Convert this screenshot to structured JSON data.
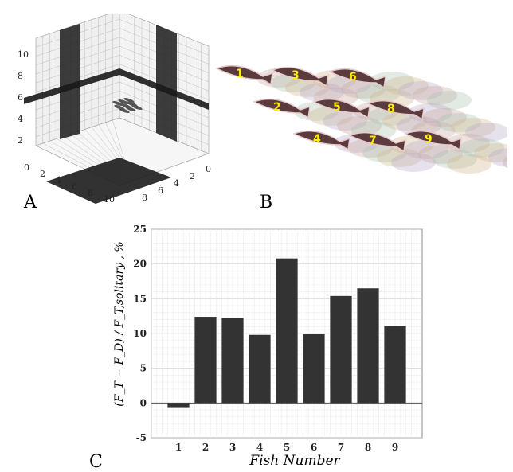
{
  "panels": {
    "a": "A",
    "b": "B",
    "c": "C"
  },
  "panel_a": {
    "vertical_ticks": [
      "2",
      "4",
      "6",
      "8",
      "10"
    ],
    "left_floor_ticks": [
      "0",
      "2",
      "4",
      "6",
      "8",
      "10"
    ],
    "right_floor_ticks": [
      "0",
      "2",
      "4",
      "6",
      "8"
    ],
    "wall_color": "#1a1a1a",
    "grid_color": "#b0b0b0"
  },
  "panel_b": {
    "fish_labels": [
      "1",
      "2",
      "3",
      "4",
      "5",
      "6",
      "7",
      "8",
      "9"
    ],
    "label_color": "#ffee00",
    "wake_colors": [
      "#c9a8a0",
      "#a8c4b0",
      "#d4b890",
      "#b8a8c8"
    ]
  },
  "chart_data": {
    "type": "bar",
    "categories": [
      "1",
      "2",
      "3",
      "4",
      "5",
      "6",
      "7",
      "8",
      "9"
    ],
    "values": [
      -0.6,
      12.4,
      12.2,
      9.8,
      20.8,
      9.9,
      15.4,
      16.5,
      11.1
    ],
    "xlabel": "Fish Number",
    "ylabel": "(F_T − F_D) / F_T,solitary , %",
    "ylim": [
      -5,
      25
    ],
    "yticks": [
      "-5",
      "0",
      "5",
      "10",
      "15",
      "20",
      "25"
    ],
    "grid": true,
    "bar_color": "#333333"
  }
}
